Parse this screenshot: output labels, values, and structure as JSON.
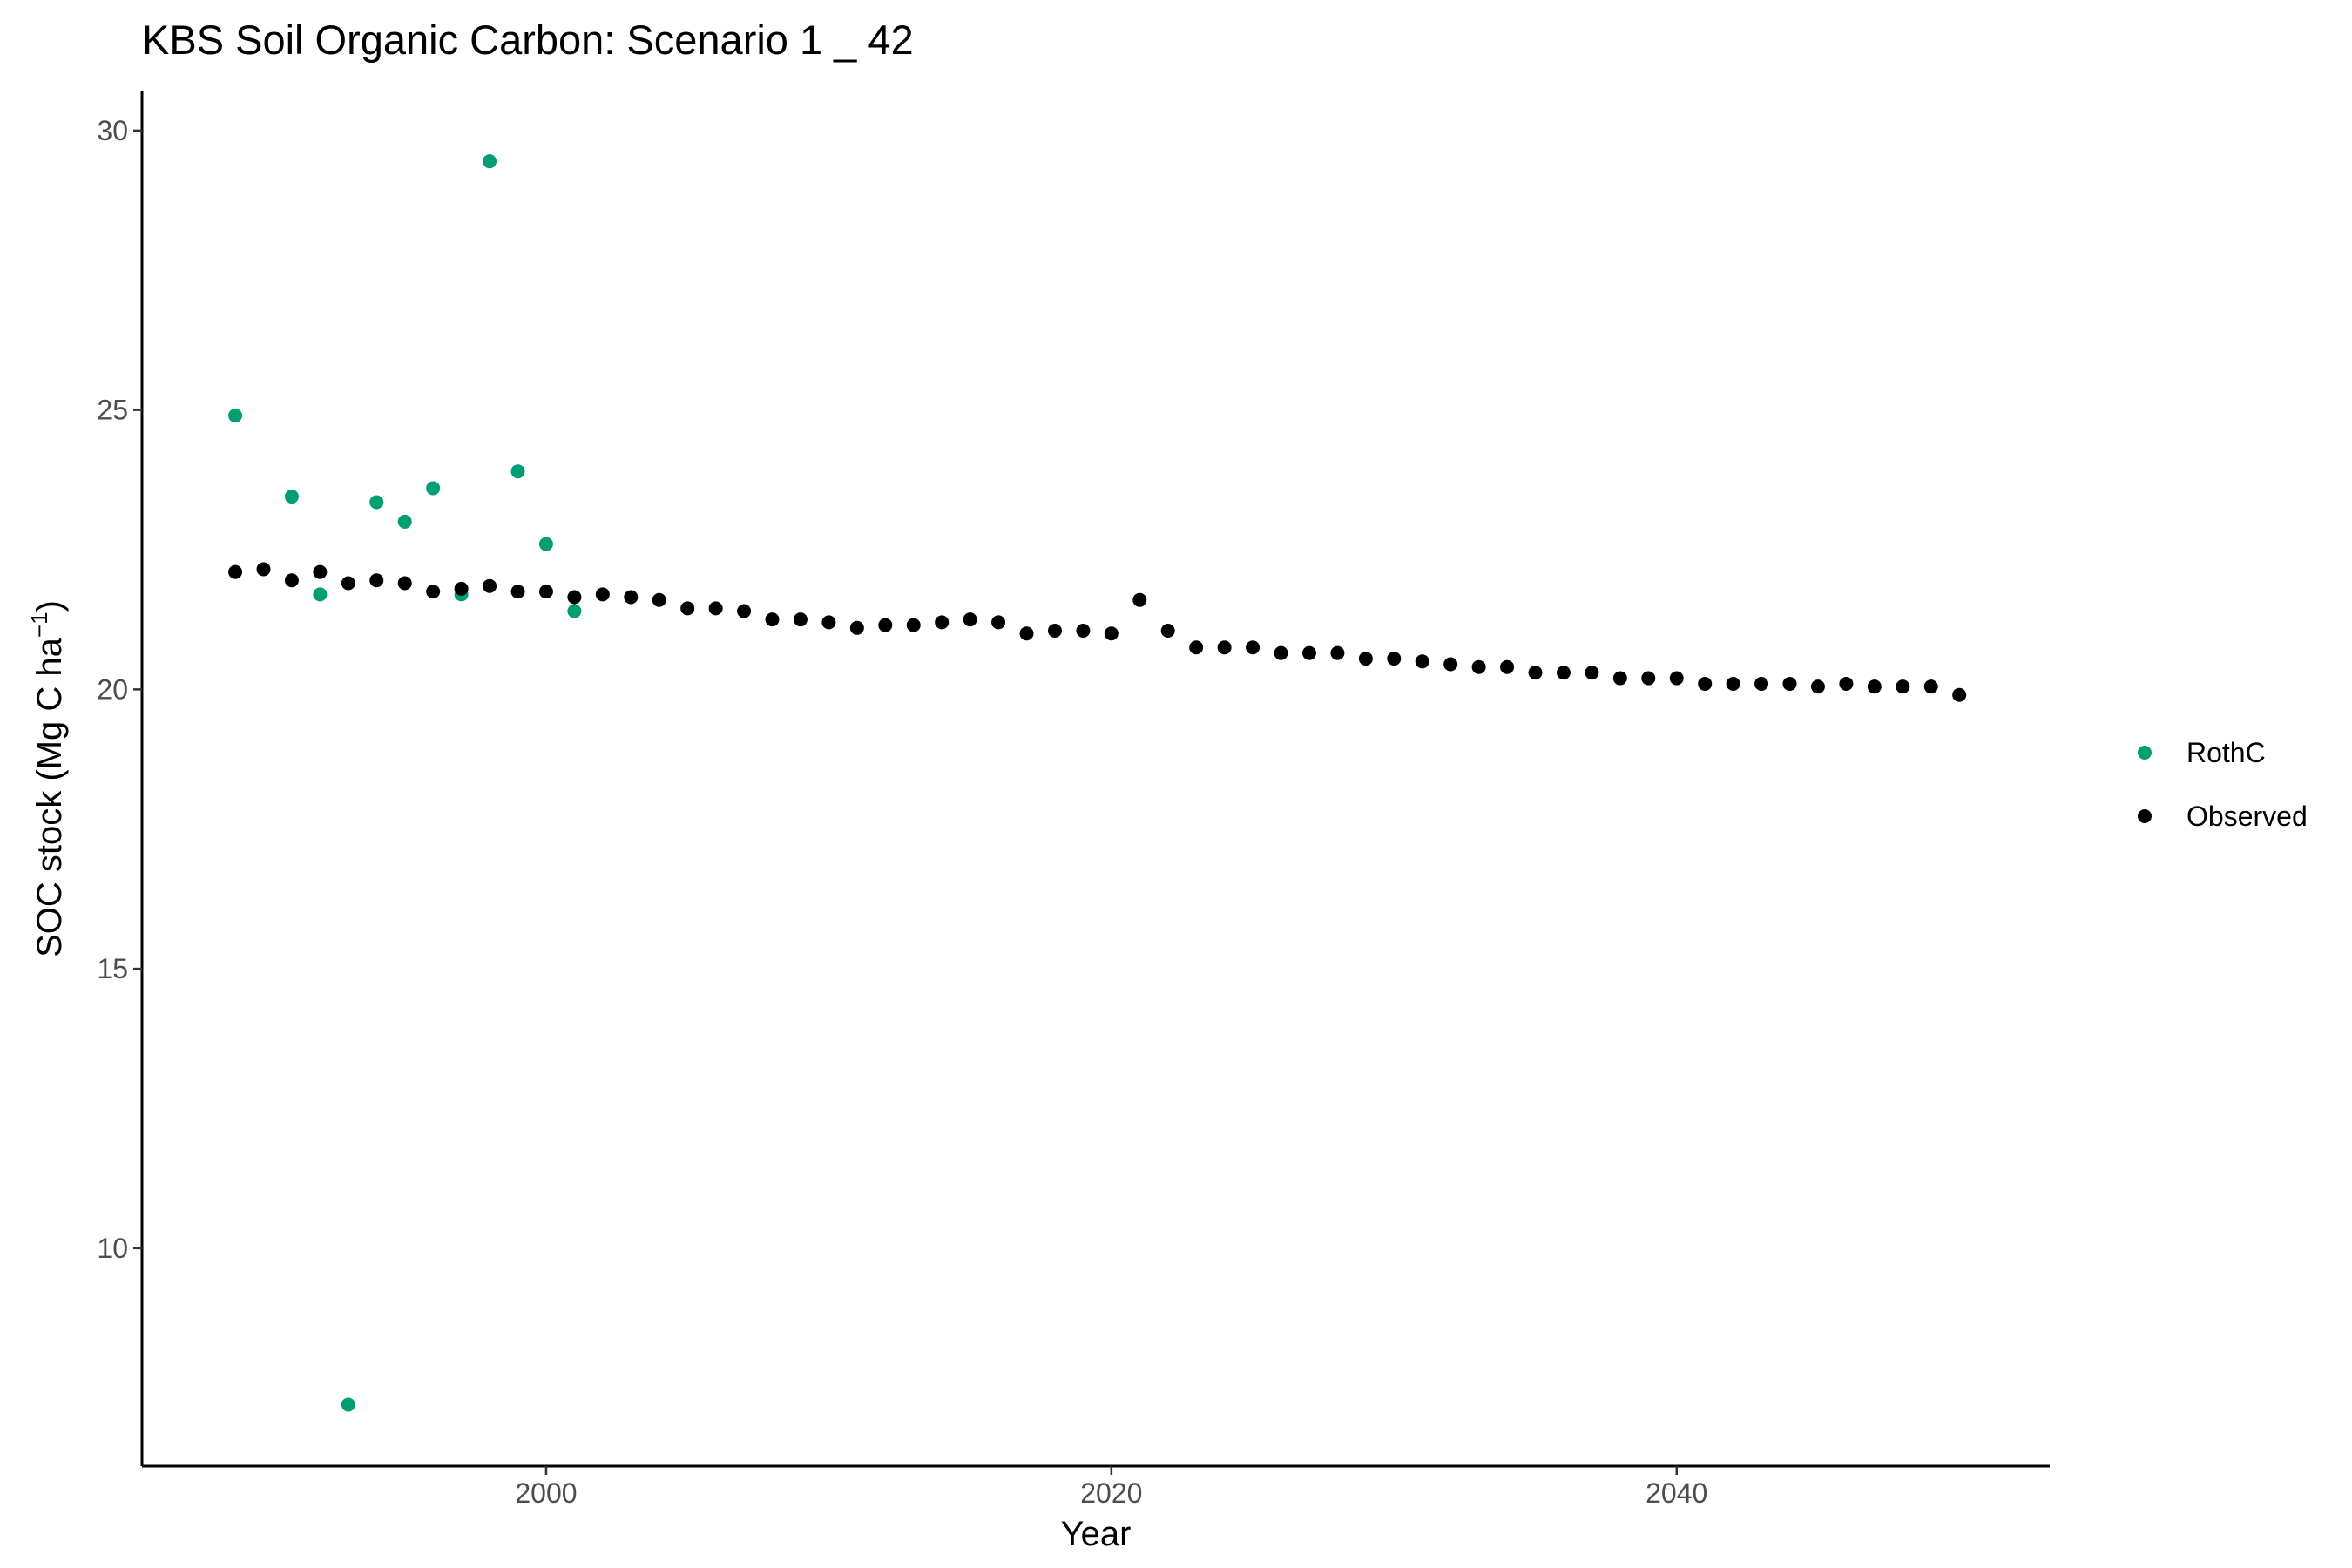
{
  "chart_data": {
    "type": "scatter",
    "title": "KBS Soil Organic Carbon: Scenario  1 _ 42",
    "xlabel": "Year",
    "ylabel": "SOC stock (Mg C ha",
    "ylabel_superscript": "−1",
    "ylabel_suffix": ")",
    "xlim": [
      1985.7,
      2053.2
    ],
    "ylim": [
      6.1,
      30.7
    ],
    "x_ticks": [
      2000,
      2020,
      2040
    ],
    "y_ticks": [
      10,
      15,
      20,
      25,
      30
    ],
    "grid": false,
    "legend_position": "right",
    "series": [
      {
        "name": "RothC",
        "color": "#009e73",
        "x": [
          1989,
          1991,
          1992,
          1993,
          1994,
          1995,
          1996,
          1997,
          1998,
          1999,
          2000,
          2001
        ],
        "y": [
          24.9,
          23.45,
          21.7,
          7.2,
          23.35,
          23.0,
          23.6,
          21.7,
          29.45,
          23.9,
          22.6,
          21.4
        ]
      },
      {
        "name": "Observed",
        "color": "#000000",
        "x": [
          1989,
          1990,
          1991,
          1992,
          1993,
          1994,
          1995,
          1996,
          1997,
          1998,
          1999,
          2000,
          2001,
          2002,
          2003,
          2004,
          2005,
          2006,
          2007,
          2008,
          2009,
          2010,
          2011,
          2012,
          2013,
          2014,
          2015,
          2016,
          2017,
          2018,
          2019,
          2020,
          2021,
          2022,
          2023,
          2024,
          2025,
          2026,
          2027,
          2028,
          2029,
          2030,
          2031,
          2032,
          2033,
          2034,
          2035,
          2036,
          2037,
          2038,
          2039,
          2040,
          2041,
          2042,
          2043,
          2044,
          2045,
          2046,
          2047,
          2048,
          2049,
          2050
        ],
        "y": [
          22.1,
          22.15,
          21.95,
          22.1,
          21.9,
          21.95,
          21.9,
          21.75,
          21.8,
          21.85,
          21.75,
          21.75,
          21.65,
          21.7,
          21.65,
          21.6,
          21.45,
          21.45,
          21.4,
          21.25,
          21.25,
          21.2,
          21.1,
          21.15,
          21.15,
          21.2,
          21.25,
          21.2,
          21.0,
          21.05,
          21.05,
          21.0,
          21.6,
          21.05,
          20.75,
          20.75,
          20.75,
          20.65,
          20.65,
          20.65,
          20.55,
          20.55,
          20.5,
          20.45,
          20.4,
          20.4,
          20.3,
          20.3,
          20.3,
          20.2,
          20.2,
          20.2,
          20.1,
          20.1,
          20.1,
          20.1,
          20.05,
          20.1,
          20.05,
          20.05,
          20.05,
          19.9
        ]
      }
    ]
  }
}
